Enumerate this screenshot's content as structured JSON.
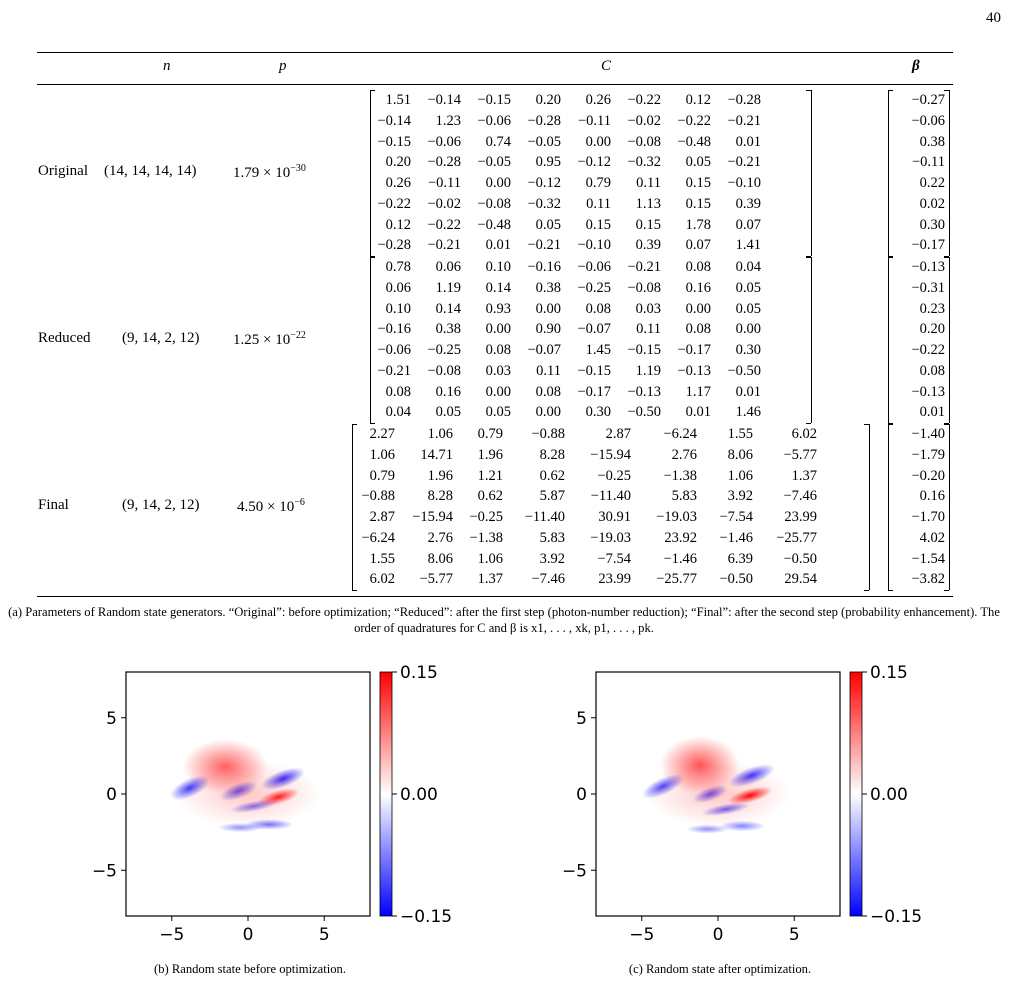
{
  "page_number": "40",
  "table": {
    "headers": {
      "n": "n",
      "p": "p",
      "C": "C",
      "beta": "β"
    },
    "rows": [
      {
        "label": "Original",
        "n": "(14, 14, 14, 14)",
        "p_mantissa": "1.79 × 10",
        "p_exp": "−30",
        "C": [
          [
            "1.51",
            "−0.14",
            "−0.15",
            "0.20",
            "0.26",
            "−0.22",
            "0.12",
            "−0.28"
          ],
          [
            "−0.14",
            "1.23",
            "−0.06",
            "−0.28",
            "−0.11",
            "−0.02",
            "−0.22",
            "−0.21"
          ],
          [
            "−0.15",
            "−0.06",
            "0.74",
            "−0.05",
            "0.00",
            "−0.08",
            "−0.48",
            "0.01"
          ],
          [
            "0.20",
            "−0.28",
            "−0.05",
            "0.95",
            "−0.12",
            "−0.32",
            "0.05",
            "−0.21"
          ],
          [
            "0.26",
            "−0.11",
            "0.00",
            "−0.12",
            "0.79",
            "0.11",
            "0.15",
            "−0.10"
          ],
          [
            "−0.22",
            "−0.02",
            "−0.08",
            "−0.32",
            "0.11",
            "1.13",
            "0.15",
            "0.39"
          ],
          [
            "0.12",
            "−0.22",
            "−0.48",
            "0.05",
            "0.15",
            "0.15",
            "1.78",
            "0.07"
          ],
          [
            "−0.28",
            "−0.21",
            "0.01",
            "−0.21",
            "−0.10",
            "0.39",
            "0.07",
            "1.41"
          ]
        ],
        "beta": [
          "−0.27",
          "−0.06",
          "0.38",
          "−0.11",
          "0.22",
          "0.02",
          "0.30",
          "−0.17"
        ]
      },
      {
        "label": "Reduced",
        "n": "(9, 14, 2, 12)",
        "p_mantissa": "1.25 × 10",
        "p_exp": "−22",
        "C": [
          [
            "0.78",
            "0.06",
            "0.10",
            "−0.16",
            "−0.06",
            "−0.21",
            "0.08",
            "0.04"
          ],
          [
            "0.06",
            "1.19",
            "0.14",
            "0.38",
            "−0.25",
            "−0.08",
            "0.16",
            "0.05"
          ],
          [
            "0.10",
            "0.14",
            "0.93",
            "0.00",
            "0.08",
            "0.03",
            "0.00",
            "0.05"
          ],
          [
            "−0.16",
            "0.38",
            "0.00",
            "0.90",
            "−0.07",
            "0.11",
            "0.08",
            "0.00"
          ],
          [
            "−0.06",
            "−0.25",
            "0.08",
            "−0.07",
            "1.45",
            "−0.15",
            "−0.17",
            "0.30"
          ],
          [
            "−0.21",
            "−0.08",
            "0.03",
            "0.11",
            "−0.15",
            "1.19",
            "−0.13",
            "−0.50"
          ],
          [
            "0.08",
            "0.16",
            "0.00",
            "0.08",
            "−0.17",
            "−0.13",
            "1.17",
            "0.01"
          ],
          [
            "0.04",
            "0.05",
            "0.05",
            "0.00",
            "0.30",
            "−0.50",
            "0.01",
            "1.46"
          ]
        ],
        "beta": [
          "−0.13",
          "−0.31",
          "0.23",
          "0.20",
          "−0.22",
          "0.08",
          "−0.13",
          "0.01"
        ]
      },
      {
        "label": "Final",
        "n": "(9, 14, 2, 12)",
        "p_mantissa": "4.50 × 10",
        "p_exp": "−6",
        "C": [
          [
            "2.27",
            "1.06",
            "0.79",
            "−0.88",
            "2.87",
            "−6.24",
            "1.55",
            "6.02"
          ],
          [
            "1.06",
            "14.71",
            "1.96",
            "8.28",
            "−15.94",
            "2.76",
            "8.06",
            "−5.77"
          ],
          [
            "0.79",
            "1.96",
            "1.21",
            "0.62",
            "−0.25",
            "−1.38",
            "1.06",
            "1.37"
          ],
          [
            "−0.88",
            "8.28",
            "0.62",
            "5.87",
            "−11.40",
            "5.83",
            "3.92",
            "−7.46"
          ],
          [
            "2.87",
            "−15.94",
            "−0.25",
            "−11.40",
            "30.91",
            "−19.03",
            "−7.54",
            "23.99"
          ],
          [
            "−6.24",
            "2.76",
            "−1.38",
            "5.83",
            "−19.03",
            "23.92",
            "−1.46",
            "−25.77"
          ],
          [
            "1.55",
            "8.06",
            "1.06",
            "3.92",
            "−7.54",
            "−1.46",
            "6.39",
            "−0.50"
          ],
          [
            "6.02",
            "−5.77",
            "1.37",
            "−7.46",
            "23.99",
            "−25.77",
            "−0.50",
            "29.54"
          ]
        ],
        "beta": [
          "−1.40",
          "−1.79",
          "−0.20",
          "0.16",
          "−1.70",
          "4.02",
          "−1.54",
          "−3.82"
        ]
      }
    ]
  },
  "caption_a": "(a) Parameters of Random state generators. “Original”: before optimization; “Reduced”: after the first step (photon-number reduction); “Final”: after the second step (probability enhancement). The order of quadratures for C and β is x1, . . . , xk, p1, . . . , pk.",
  "plots": [
    {
      "caption": "(b) Random state before optimization."
    },
    {
      "caption": "(c) Random state after optimization."
    }
  ],
  "chart_data": [
    {
      "type": "heatmap",
      "title": "",
      "x_ticks": [
        "−5",
        "0",
        "5"
      ],
      "y_ticks": [
        "5",
        "0",
        "−5"
      ],
      "xlim": [
        -8,
        8
      ],
      "ylim": [
        -8,
        8
      ],
      "colorbar_ticks": [
        "0.15",
        "0.00",
        "−0.15"
      ],
      "colorbar_range": [
        -0.15,
        0.15
      ],
      "colormap": [
        "#0000ff",
        "#ffffff",
        "#ff0000"
      ]
    },
    {
      "type": "heatmap",
      "title": "",
      "x_ticks": [
        "−5",
        "0",
        "5"
      ],
      "y_ticks": [
        "5",
        "0",
        "−5"
      ],
      "xlim": [
        -8,
        8
      ],
      "ylim": [
        -8,
        8
      ],
      "colorbar_ticks": [
        "0.15",
        "0.00",
        "−0.15"
      ],
      "colorbar_range": [
        -0.15,
        0.15
      ],
      "colormap": [
        "#0000ff",
        "#ffffff",
        "#ff0000"
      ]
    }
  ]
}
